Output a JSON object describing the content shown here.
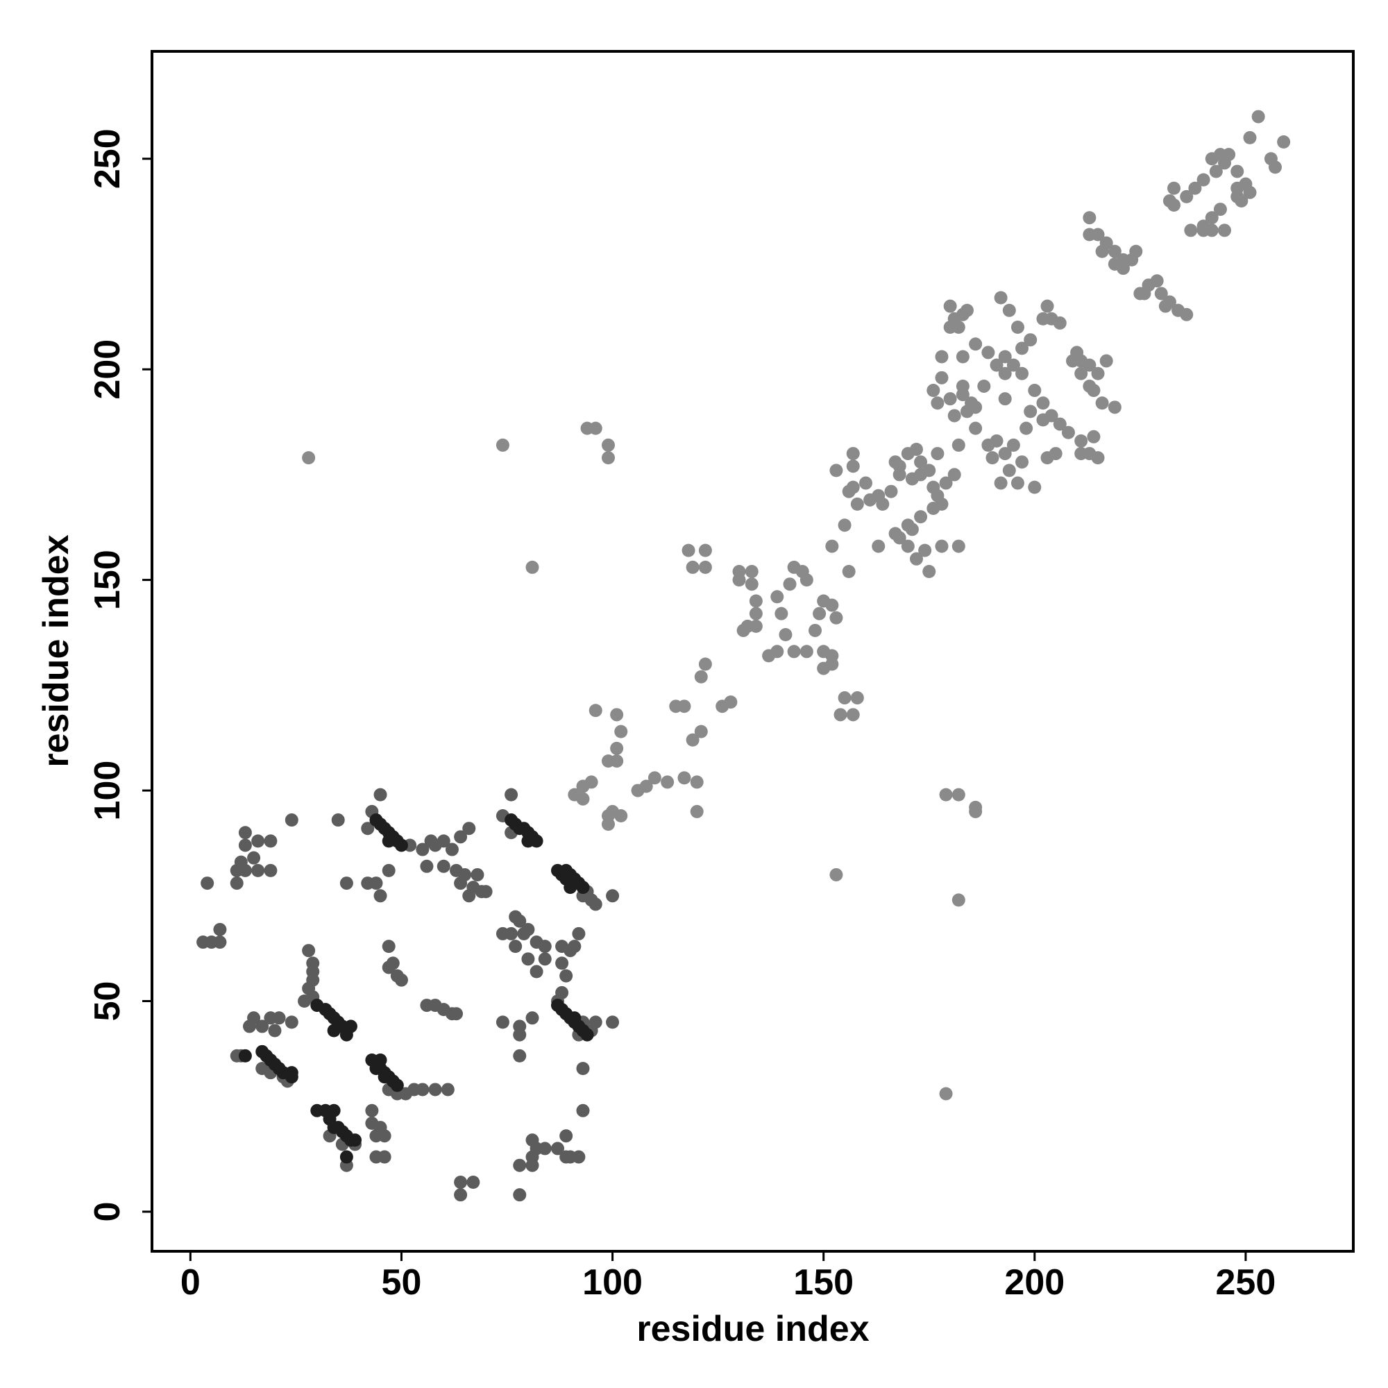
{
  "chart_data": {
    "type": "scatter",
    "xlabel": "residue index",
    "ylabel": "residue index",
    "xlim": [
      -9.1,
      275.5
    ],
    "ylim": [
      -9.4,
      275.5
    ],
    "xticks": [
      0,
      50,
      100,
      150,
      200,
      250
    ],
    "yticks": [
      0,
      50,
      100,
      150,
      200,
      250
    ],
    "grid": false,
    "series": [
      {
        "color": "#8a8a8a",
        "x": [
          253,
          259,
          251,
          256,
          244,
          246,
          242,
          248,
          245,
          257,
          240,
          238,
          236,
          250,
          248,
          251,
          249,
          244,
          242,
          240,
          233,
          232,
          233,
          237,
          240,
          242,
          245,
          248,
          243,
          213,
          213,
          215,
          217,
          219,
          221,
          223,
          216,
          219,
          221,
          224,
          227,
          226,
          229,
          230,
          232,
          234,
          236,
          225,
          231,
          180,
          181,
          183,
          182,
          180,
          184,
          192,
          194,
          196,
          203,
          204,
          206,
          202,
          199,
          197,
          189,
          186,
          193,
          195,
          191,
          193,
          197,
          210,
          211,
          213,
          215,
          209,
          217,
          211,
          213,
          178,
          176,
          177,
          180,
          183,
          184,
          181,
          186,
          185,
          200,
          199,
          202,
          204,
          202,
          206,
          208,
          211,
          213,
          215,
          211,
          214,
          216,
          219,
          214,
          191,
          189,
          190,
          193,
          194,
          192,
          196,
          195,
          197,
          200,
          203,
          205,
          198,
          193,
          188,
          183,
          178,
          183,
          186,
          182,
          168,
          170,
          172,
          168,
          171,
          175,
          177,
          173,
          167,
          166,
          163,
          160,
          157,
          156,
          158,
          153,
          157,
          157,
          161,
          164,
          173,
          176,
          179,
          181,
          177,
          178,
          176,
          173,
          171,
          168,
          170,
          172,
          175,
          178,
          182,
          170,
          174,
          167,
          155,
          156,
          163,
          152,
          150,
          152,
          153,
          149,
          148,
          143,
          145,
          146,
          142,
          139,
          140,
          141,
          139,
          137,
          143,
          146,
          150,
          152,
          150,
          152,
          155,
          158,
          154,
          157,
          130,
          133,
          130,
          133,
          134,
          134,
          134,
          132,
          131,
          128,
          126,
          122,
          121,
          121,
          119,
          117,
          115,
          110,
          113,
          117,
          120,
          120,
          108,
          106,
          118,
          122,
          119,
          122,
          101,
          102,
          101,
          99,
          101,
          96,
          95,
          93,
          91,
          93,
          99,
          100,
          99,
          102,
          94,
          96,
          99,
          99,
          74,
          81,
          28,
          153,
          179,
          182,
          186,
          186,
          182,
          179
        ],
        "values": [
          260,
          254,
          255,
          250,
          251,
          251,
          250,
          247,
          249,
          248,
          245,
          243,
          241,
          244,
          243,
          242,
          240,
          238,
          236,
          234,
          243,
          240,
          239,
          233,
          233,
          233,
          233,
          241,
          247,
          236,
          232,
          232,
          230,
          228,
          226,
          226,
          228,
          225,
          224,
          228,
          220,
          218,
          221,
          218,
          216,
          214,
          213,
          218,
          215,
          215,
          212,
          213,
          210,
          210,
          214,
          217,
          214,
          210,
          215,
          212,
          211,
          212,
          207,
          205,
          204,
          206,
          203,
          201,
          201,
          199,
          199,
          204,
          202,
          201,
          199,
          202,
          202,
          199,
          196,
          198,
          195,
          192,
          193,
          194,
          190,
          189,
          191,
          192,
          195,
          190,
          192,
          189,
          188,
          187,
          185,
          183,
          180,
          179,
          180,
          184,
          192,
          191,
          195,
          183,
          182,
          179,
          180,
          176,
          173,
          173,
          182,
          178,
          172,
          179,
          180,
          186,
          193,
          196,
          203,
          203,
          196,
          186,
          182,
          177,
          180,
          181,
          175,
          174,
          176,
          180,
          178,
          178,
          171,
          170,
          173,
          172,
          171,
          168,
          176,
          180,
          177,
          169,
          168,
          175,
          172,
          173,
          175,
          170,
          168,
          167,
          165,
          162,
          160,
          158,
          155,
          152,
          158,
          158,
          163,
          157,
          161,
          163,
          152,
          158,
          158,
          145,
          144,
          141,
          142,
          138,
          153,
          152,
          150,
          149,
          146,
          142,
          137,
          133,
          132,
          133,
          133,
          133,
          130,
          129,
          132,
          122,
          122,
          118,
          118,
          152,
          152,
          150,
          149,
          145,
          142,
          139,
          139,
          138,
          121,
          120,
          130,
          127,
          114,
          112,
          120,
          120,
          103,
          102,
          103,
          102,
          95,
          101,
          100,
          157,
          157,
          153,
          153,
          118,
          114,
          110,
          107,
          107,
          119,
          102,
          101,
          99,
          98,
          94,
          95,
          92,
          94,
          186,
          186,
          182,
          179,
          182,
          153,
          179,
          80,
          99,
          99,
          96,
          95,
          74,
          28
        ]
      },
      {
        "color": "#5c5c5c",
        "x": [
          28,
          29,
          29,
          29,
          28,
          29,
          27,
          15,
          14,
          17,
          19,
          21,
          20,
          24,
          12,
          17,
          19,
          22,
          23,
          43,
          44,
          46,
          45,
          44,
          46,
          43,
          47,
          49,
          51,
          53,
          55,
          58,
          61,
          47,
          48,
          47,
          50,
          49,
          56,
          58,
          60,
          62,
          63,
          42,
          44,
          45,
          47,
          35,
          37,
          42,
          43,
          45,
          52,
          55,
          57,
          60,
          58,
          60,
          62,
          64,
          66,
          63,
          65,
          68,
          67,
          69,
          70,
          66,
          64,
          56,
          76,
          74,
          76,
          77,
          78,
          79,
          80,
          82,
          84,
          77,
          76,
          74,
          80,
          82,
          84,
          88,
          90,
          91,
          88,
          89,
          92,
          88,
          87,
          93,
          96,
          100,
          92,
          95,
          95,
          93,
          96,
          94,
          100,
          74,
          78,
          78,
          78,
          81,
          93,
          93,
          78,
          81,
          81,
          82,
          84,
          87,
          89,
          90,
          92,
          89,
          81,
          64,
          67,
          64,
          78,
          16,
          13,
          13,
          15,
          12,
          11,
          13,
          16,
          19,
          19,
          11,
          24,
          4,
          3,
          5,
          7,
          7,
          11,
          37,
          33,
          36,
          39
        ],
        "values": [
          62,
          59,
          57,
          55,
          53,
          51,
          50,
          46,
          44,
          44,
          46,
          46,
          43,
          45,
          37,
          34,
          33,
          32,
          31,
          21,
          18,
          18,
          20,
          13,
          13,
          24,
          29,
          28,
          28,
          29,
          29,
          29,
          29,
          63,
          59,
          58,
          55,
          56,
          49,
          49,
          48,
          47,
          47,
          78,
          78,
          75,
          81,
          93,
          78,
          91,
          95,
          99,
          87,
          86,
          88,
          88,
          87,
          82,
          86,
          89,
          91,
          81,
          80,
          80,
          77,
          76,
          76,
          75,
          78,
          82,
          99,
          94,
          90,
          70,
          69,
          66,
          67,
          64,
          63,
          63,
          66,
          66,
          60,
          57,
          60,
          63,
          62,
          63,
          59,
          56,
          66,
          52,
          50,
          45,
          45,
          45,
          42,
          43,
          74,
          75,
          73,
          76,
          75,
          45,
          44,
          42,
          37,
          46,
          34,
          24,
          11,
          11,
          13,
          15,
          15,
          15,
          13,
          13,
          13,
          18,
          17,
          7,
          7,
          4,
          4,
          88,
          90,
          87,
          84,
          83,
          81,
          81,
          81,
          88,
          81,
          78,
          93,
          78,
          64,
          64,
          64,
          67,
          37,
          11,
          18,
          16,
          16
        ]
      },
      {
        "color": "#1e1e1e",
        "x": [
          30,
          32,
          34,
          33,
          34,
          35,
          36,
          37,
          38,
          39,
          37,
          17,
          18,
          19,
          20,
          21,
          22,
          24,
          24,
          13,
          30,
          32,
          33,
          34,
          35,
          36,
          37,
          38,
          37,
          34,
          43,
          44,
          45,
          46,
          47,
          48,
          45,
          44,
          46,
          49,
          44,
          45,
          46,
          47,
          48,
          49,
          50,
          47,
          76,
          77,
          78,
          79,
          80,
          81,
          82,
          80,
          87,
          88,
          89,
          90,
          91,
          92,
          93,
          90,
          89,
          87,
          88,
          89,
          90,
          91,
          92,
          93,
          94,
          91
        ],
        "values": [
          24,
          24,
          24,
          22,
          20,
          20,
          19,
          18,
          17,
          17,
          13,
          38,
          37,
          36,
          35,
          34,
          33,
          32,
          33,
          37,
          49,
          48,
          47,
          46,
          45,
          44,
          43,
          44,
          42,
          43,
          36,
          35,
          34,
          33,
          32,
          31,
          36,
          34,
          32,
          30,
          93,
          92,
          91,
          90,
          89,
          88,
          87,
          88,
          93,
          92,
          91,
          91,
          90,
          89,
          88,
          88,
          81,
          80,
          79,
          80,
          79,
          78,
          77,
          77,
          81,
          49,
          48,
          47,
          46,
          45,
          44,
          43,
          42,
          46
        ]
      }
    ]
  }
}
